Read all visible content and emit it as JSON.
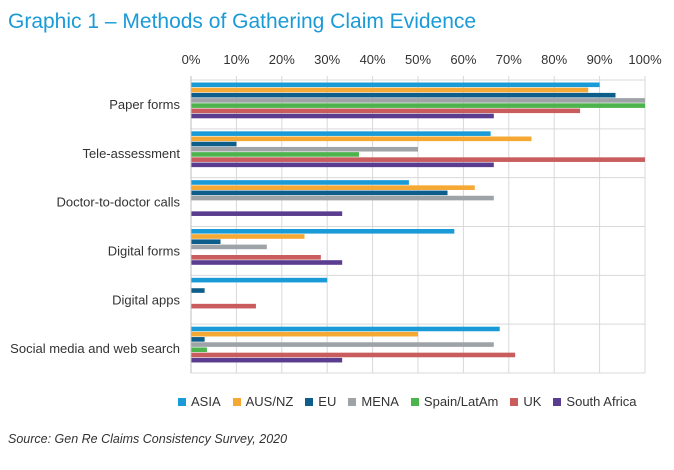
{
  "chart_data": {
    "type": "bar",
    "orientation": "horizontal",
    "title": "Graphic 1 – Methods of Gathering Claim Evidence",
    "xlim": [
      0,
      100
    ],
    "x_ticks": [
      "0%",
      "10%",
      "20%",
      "30%",
      "40%",
      "50%",
      "60%",
      "70%",
      "80%",
      "90%",
      "100%"
    ],
    "categories": [
      "Paper forms",
      "Tele-assessment",
      "Doctor-to-doctor calls",
      "Digital forms",
      "Digital apps",
      "Social media and web search"
    ],
    "series": [
      {
        "name": "ASIA",
        "color": "#1a9bd7",
        "values": [
          90,
          66,
          48,
          58,
          30,
          68
        ]
      },
      {
        "name": "AUS/NZ",
        "color": "#f5a833",
        "values": [
          87.5,
          75,
          62.5,
          25,
          0,
          50
        ]
      },
      {
        "name": "EU",
        "color": "#0d5e8a",
        "values": [
          93.5,
          10,
          56.5,
          6.5,
          3,
          3
        ]
      },
      {
        "name": "MENA",
        "color": "#9ea3a8",
        "values": [
          100,
          50,
          66.7,
          16.7,
          0,
          66.7
        ]
      },
      {
        "name": "Spain/LatAm",
        "color": "#4db34d",
        "values": [
          100,
          37,
          0,
          0,
          0,
          3.5
        ]
      },
      {
        "name": "UK",
        "color": "#c95c5c",
        "values": [
          85.7,
          100,
          0,
          28.6,
          14.3,
          71.4
        ]
      },
      {
        "name": "South Africa",
        "color": "#5b3d8f",
        "values": [
          66.7,
          66.7,
          33.3,
          33.3,
          0,
          33.3
        ]
      }
    ]
  },
  "source": "Source: Gen Re Claims Consistency Survey, 2020"
}
